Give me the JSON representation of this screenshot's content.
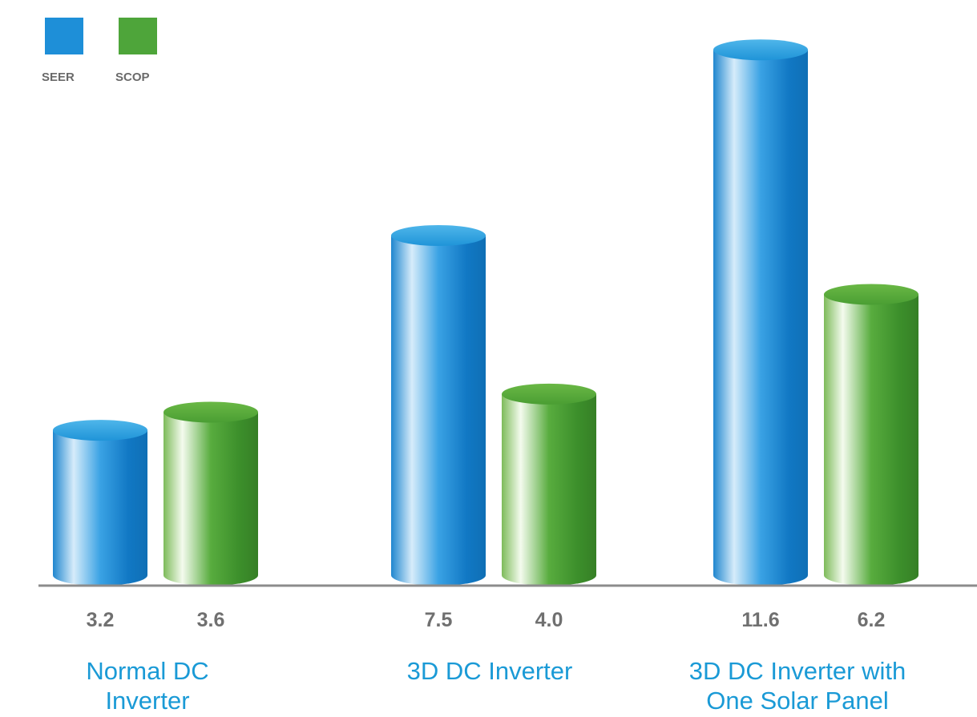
{
  "chart_data": {
    "type": "bar",
    "title": "",
    "xlabel": "",
    "ylabel": "",
    "categories": [
      [
        "Normal DC",
        "Inverter"
      ],
      [
        "3D DC Inverter"
      ],
      [
        "3D DC Inverter with",
        "One Solar Panel"
      ]
    ],
    "series": [
      {
        "name": "SEER",
        "values": [
          "3.2",
          "7.5",
          "11.6"
        ],
        "color": "#1e8fd8"
      },
      {
        "name": "SCOP",
        "values": [
          "3.6",
          "4.0",
          "6.2"
        ],
        "color": "#4ea53a"
      }
    ],
    "legend_position": "top-left",
    "grid": false,
    "category_label_color": "#1a9ad6",
    "bar_style": "3d-cylinder"
  }
}
